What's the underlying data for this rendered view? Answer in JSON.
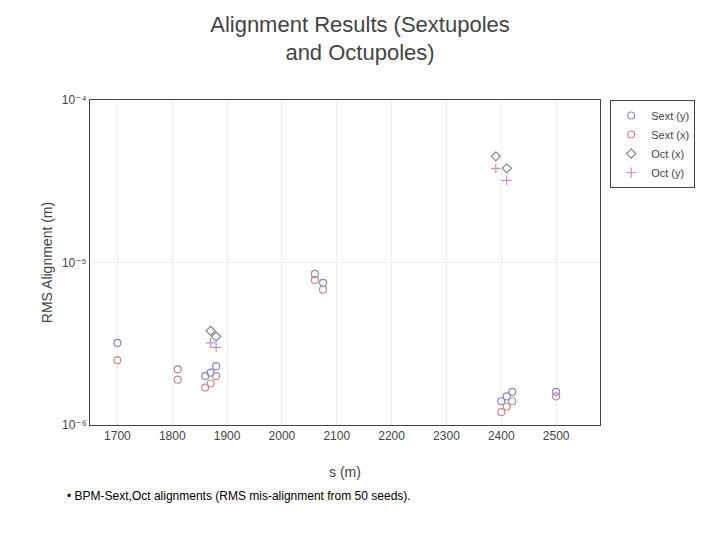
{
  "chart_data": {
    "type": "scatter",
    "title": "Alignment Results (Sextupoles\nand Octupoles)",
    "x_label": "s (m)",
    "y_label": "RMS Alignment (m)",
    "annotations": [
      "• BPM-Sext,Oct alignments (RMS mis-alignment from 50 seeds)."
    ],
    "log": "y",
    "xlim": [
      1650,
      2580
    ],
    "ylim": [
      1e-06,
      0.0001
    ],
    "xticks": [
      1700,
      1800,
      1900,
      2000,
      2100,
      2200,
      2300,
      2400,
      2500
    ],
    "yticks": [
      {
        "value": 1e-06,
        "label": "10⁻⁶"
      },
      {
        "value": 1e-05,
        "label": "10⁻⁵"
      },
      {
        "value": 0.0001,
        "label": "10⁻⁴"
      }
    ],
    "grid": true,
    "legend": "upper right",
    "series": [
      {
        "name": "Sext (y)",
        "color": "#8888cc",
        "marker": "circle",
        "x": [
          1700,
          1810,
          1860,
          1870,
          1880,
          2060,
          2075,
          2400,
          2410,
          2420,
          2500
        ],
        "values": [
          3.2e-06,
          2.2e-06,
          2e-06,
          2.1e-06,
          2.3e-06,
          8.5e-06,
          7.5e-06,
          1.4e-06,
          1.5e-06,
          1.6e-06,
          1.6e-06
        ]
      },
      {
        "name": "Sext (x)",
        "color": "#cc8888",
        "marker": "circle",
        "x": [
          1700,
          1810,
          1860,
          1870,
          1880,
          2060,
          2075,
          2400,
          2410,
          2420,
          2500
        ],
        "values": [
          2.5e-06,
          1.9e-06,
          1.7e-06,
          1.8e-06,
          2e-06,
          7.8e-06,
          6.8e-06,
          1.2e-06,
          1.3e-06,
          1.4e-06,
          1.5e-06
        ]
      },
      {
        "name": "Oct (x)",
        "color": "#888888",
        "marker": "diamond",
        "x": [
          1870,
          1880,
          2390,
          2410
        ],
        "values": [
          3.8e-06,
          3.5e-06,
          4.5e-05,
          3.8e-05
        ]
      },
      {
        "name": "Oct (y)",
        "color": "#cc88cc",
        "marker": "plus",
        "x": [
          1870,
          1880,
          2390,
          2410
        ],
        "values": [
          3.2e-06,
          3e-06,
          3.8e-05,
          3.2e-05
        ]
      }
    ]
  }
}
